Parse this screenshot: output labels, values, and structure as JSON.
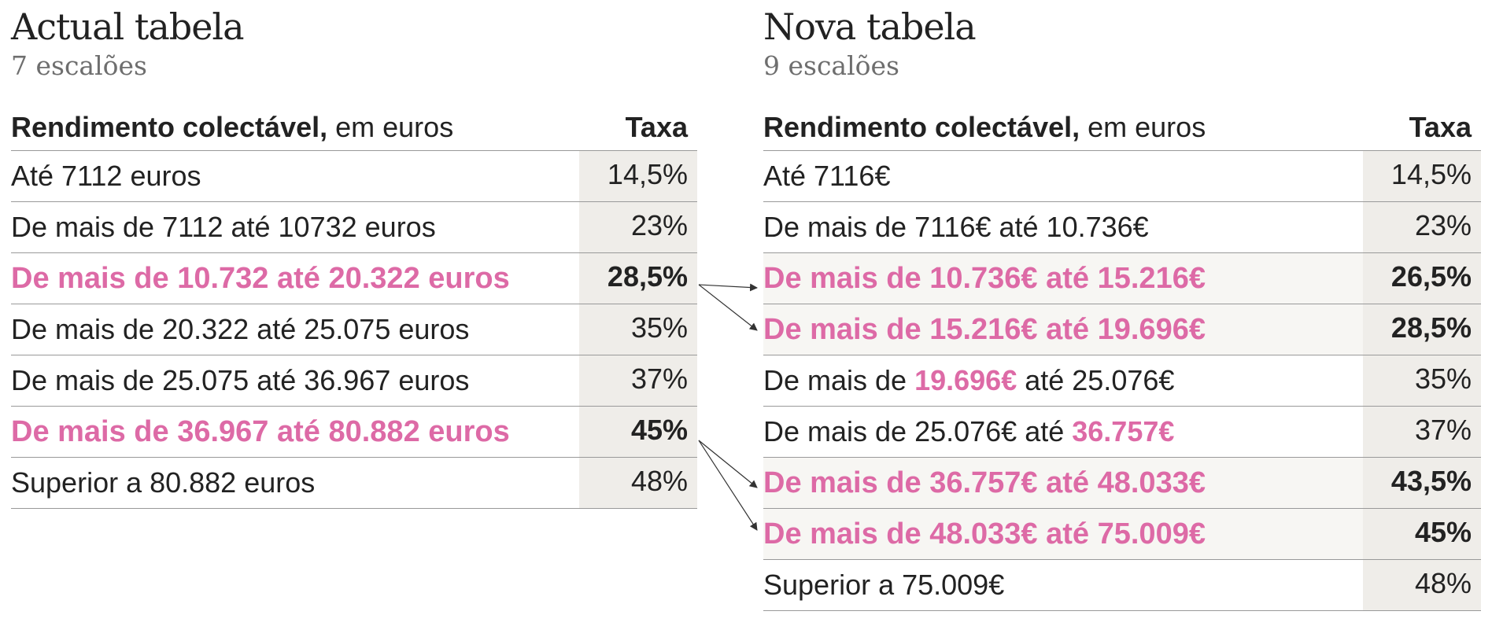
{
  "left": {
    "title": "Actual tabela",
    "subtitle": "7 escalões",
    "header_bold": "Rendimento colectável,",
    "header_rest": " em euros",
    "rate_header": "Taxa",
    "rows": [
      {
        "range": "Até 7112 euros",
        "rate": "14,5%"
      },
      {
        "range": "De mais de 7112 até 10732 euros",
        "rate": "23%"
      },
      {
        "range": "De mais de 10.732 até 20.322 euros",
        "rate": "28,5%"
      },
      {
        "range": "De mais de 20.322 até 25.075 euros",
        "rate": "35%"
      },
      {
        "range": "De mais de 25.075 até 36.967 euros",
        "rate": "37%"
      },
      {
        "range": "De mais de 36.967 até 80.882 euros",
        "rate": "45%"
      },
      {
        "range": "Superior a 80.882 euros",
        "rate": "48%"
      }
    ]
  },
  "right": {
    "title": "Nova tabela",
    "subtitle": "9 escalões",
    "header_bold": "Rendimento colectável,",
    "header_rest": " em euros",
    "rate_header": "Taxa",
    "rows": [
      {
        "range": "Até 7116€",
        "rate": "14,5%"
      },
      {
        "range": "De mais de 7116€ até 10.736€",
        "rate": "23%"
      },
      {
        "range": "De mais de 10.736€ até 15.216€",
        "rate": "26,5%"
      },
      {
        "range": "De mais de 15.216€ até 19.696€",
        "rate": "28,5%"
      },
      {
        "range_a": "De mais de ",
        "range_b": "19.696€",
        "range_c": " até 25.076€",
        "rate": "35%"
      },
      {
        "range_a": "De mais de 25.076€ até ",
        "range_b": "36.757€",
        "range_c": "",
        "rate": "37%"
      },
      {
        "range": "De mais de 36.757€ até 48.033€",
        "rate": "43,5%"
      },
      {
        "range": "De mais de 48.033€ até 75.009€",
        "rate": "45%"
      },
      {
        "range": "Superior a 75.009€",
        "rate": "48%"
      }
    ]
  },
  "colors": {
    "highlight": "#dd6aa6",
    "rate_bg": "#efede9",
    "rule": "#999999"
  }
}
